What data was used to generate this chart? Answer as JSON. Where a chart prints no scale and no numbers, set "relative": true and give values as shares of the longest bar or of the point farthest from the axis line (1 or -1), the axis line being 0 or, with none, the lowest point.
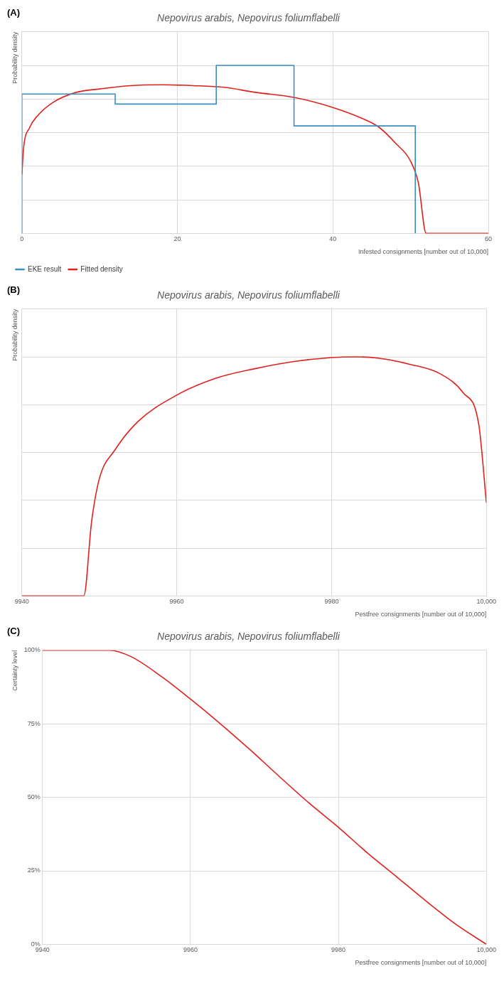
{
  "chart_data": [
    {
      "type": "line",
      "title": "Nepovirus arabis, Nepovirus foliumflabelli",
      "annotations": [
        "(A)"
      ],
      "xlabel": "Infested consignments [number out of 10,000]",
      "ylabel": "Probability density",
      "relative": true,
      "xlim": [
        0,
        60
      ],
      "xticks": [
        0,
        20,
        40,
        60
      ],
      "grid": true,
      "legend": "bottom left",
      "marker": "none",
      "series": [
        {
          "name": "EKE result",
          "type": "step",
          "color": "#3a8fc0",
          "x": [
            0,
            0,
            12,
            25,
            35,
            50.6
          ],
          "values": [
            0,
            0.83,
            0.77,
            1,
            0.64,
            0
          ]
        },
        {
          "name": "Fitted density",
          "type": "line",
          "color": "#e0201c",
          "x": [
            0,
            0.2,
            1,
            2,
            4,
            7,
            10,
            14,
            18,
            22,
            26,
            30,
            35,
            40,
            44,
            46,
            48,
            50,
            51,
            52,
            60
          ],
          "values": [
            0.35,
            0.5,
            0.63,
            0.7,
            0.78,
            0.84,
            0.86,
            0.88,
            0.885,
            0.88,
            0.87,
            0.84,
            0.81,
            0.75,
            0.68,
            0.63,
            0.54,
            0.43,
            0.3,
            0,
            0
          ]
        }
      ]
    },
    {
      "type": "line",
      "title": "Nepovirus arabis, Nepovirus foliumflabelli",
      "annotations": [
        "(B)"
      ],
      "xlabel": "Pestfree consignments [number out of 10,000]",
      "ylabel": "Probability density",
      "relative": true,
      "xlim": [
        9940,
        10000
      ],
      "xticks": [
        9940,
        9960,
        9980,
        {
          "value": 10000,
          "label": "10,000"
        }
      ],
      "grid": true,
      "marker": "none",
      "series": [
        {
          "color": "#e0201c",
          "x": [
            9940,
            9948,
            9949,
            9950,
            9952,
            9955,
            9960,
            9965,
            9970,
            9975,
            9980,
            9983,
            9986,
            9990,
            9994,
            9997,
            9999,
            10000
          ],
          "values": [
            0,
            0,
            0.31,
            0.49,
            0.61,
            0.73,
            0.84,
            0.91,
            0.95,
            0.98,
            0.997,
            1,
            0.995,
            0.97,
            0.93,
            0.85,
            0.72,
            0.39
          ]
        }
      ]
    },
    {
      "type": "line",
      "title": "Nepovirus arabis, Nepovirus foliumflabelli",
      "annotations": [
        "(C)"
      ],
      "xlabel": "Pestfree consignments [number out of 10,000]",
      "ylabel": "Certainty level",
      "xlim": [
        9940,
        10000
      ],
      "xticks": [
        9940,
        9960,
        9980,
        {
          "value": 10000,
          "label": "10,000"
        }
      ],
      "ylim": [
        0,
        100
      ],
      "yticks": [
        {
          "value": 0,
          "label": "0%"
        },
        {
          "value": 25,
          "label": "25%"
        },
        {
          "value": 50,
          "label": "50%"
        },
        {
          "value": 75,
          "label": "75%"
        },
        {
          "value": 100,
          "label": "100%"
        }
      ],
      "grid": true,
      "marker": "none",
      "series": [
        {
          "color": "#e0201c",
          "x": [
            9940,
            9949,
            9952,
            9956,
            9960,
            9964,
            9968,
            9972,
            9976,
            9980,
            9984,
            9988,
            9992,
            9996,
            10000
          ],
          "values": [
            100,
            100,
            97.8,
            91.2,
            83.4,
            75.1,
            66.3,
            57.1,
            48.1,
            39.8,
            30.9,
            22.7,
            14.4,
            6.6,
            0
          ]
        }
      ]
    }
  ]
}
